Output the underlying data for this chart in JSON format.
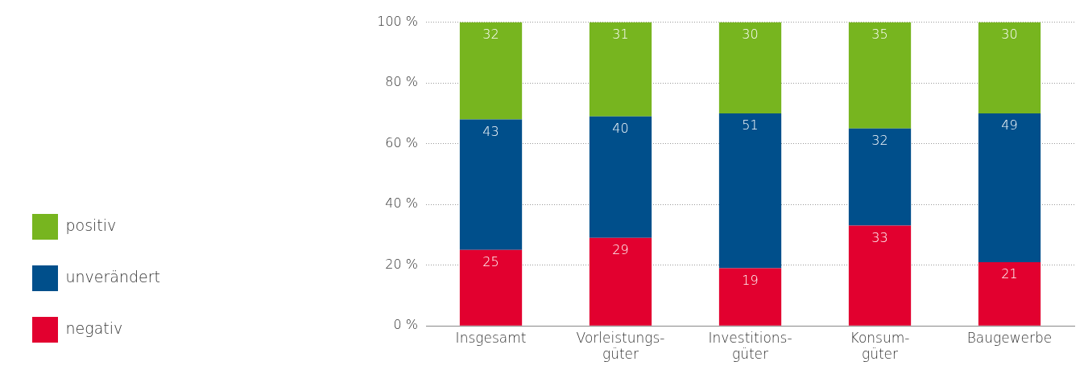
{
  "chart_data": {
    "type": "bar",
    "stacked": true,
    "categories": [
      "Insgesamt",
      "Vorleistungs-\ngüter",
      "Investitions-\ngüter",
      "Konsum-\ngüter",
      "Baugewerbe"
    ],
    "series": [
      {
        "name": "negativ",
        "color": "#e2002f",
        "values": [
          25,
          29,
          19,
          33,
          21
        ]
      },
      {
        "name": "unverändert",
        "color": "#004f8b",
        "values": [
          43,
          40,
          51,
          32,
          49
        ]
      },
      {
        "name": "positiv",
        "color": "#77b51f",
        "values": [
          32,
          31,
          30,
          35,
          30
        ]
      }
    ],
    "ylim": [
      0,
      100
    ],
    "yticks": [
      {
        "value": 0,
        "label": "0 %"
      },
      {
        "value": 20,
        "label": "20 %"
      },
      {
        "value": 40,
        "label": "40 %"
      },
      {
        "value": 60,
        "label": "60 %"
      },
      {
        "value": 80,
        "label": "80 %"
      },
      {
        "value": 100,
        "label": "100 %"
      }
    ],
    "grid": "y",
    "legend": "bottom left",
    "data_labels": true
  }
}
